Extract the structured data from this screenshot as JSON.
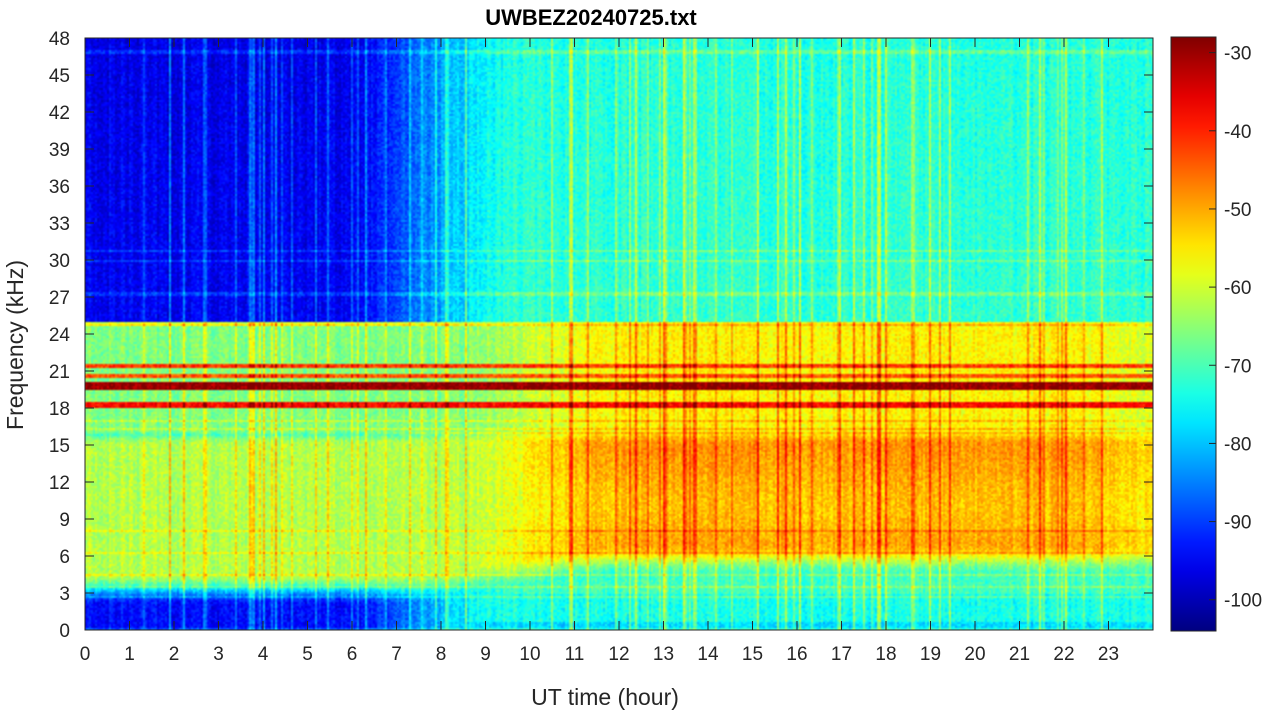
{
  "chart_data": {
    "type": "heatmap",
    "title": "UWBEZ20240725.txt",
    "xlabel": "UT time (hour)",
    "ylabel": "Frequency (kHz)",
    "xlim": [
      0,
      24
    ],
    "ylim": [
      0,
      48
    ],
    "x_ticks": [
      "0",
      "1",
      "2",
      "3",
      "4",
      "5",
      "6",
      "7",
      "8",
      "9",
      "10",
      "11",
      "12",
      "13",
      "14",
      "15",
      "16",
      "17",
      "18",
      "19",
      "20",
      "21",
      "22",
      "23"
    ],
    "y_ticks": [
      "0",
      "3",
      "6",
      "9",
      "12",
      "15",
      "18",
      "21",
      "24",
      "27",
      "30",
      "33",
      "36",
      "39",
      "42",
      "45",
      "48"
    ],
    "colorbar": {
      "colormap": "jet",
      "clim": [
        -104,
        -28
      ],
      "ticks": [
        "-30",
        "-40",
        "-50",
        "-60",
        "-70",
        "-80",
        "-90",
        "-100"
      ]
    },
    "narrowband_lines_khz": [
      19.8,
      18.2,
      21.4,
      24.8,
      20.6
    ],
    "approx_levels": {
      "background_high_freq_0_to_6h": -95,
      "background_high_freq_9_to_24h": -72,
      "broadband_3_to_16khz_0_to_6h": -62,
      "broadband_4_to_16khz_11_to_22h": -48,
      "line_19_8khz": -30,
      "line_18_2khz": -38,
      "line_21_4khz": -42,
      "line_24_8khz": -60
    }
  }
}
